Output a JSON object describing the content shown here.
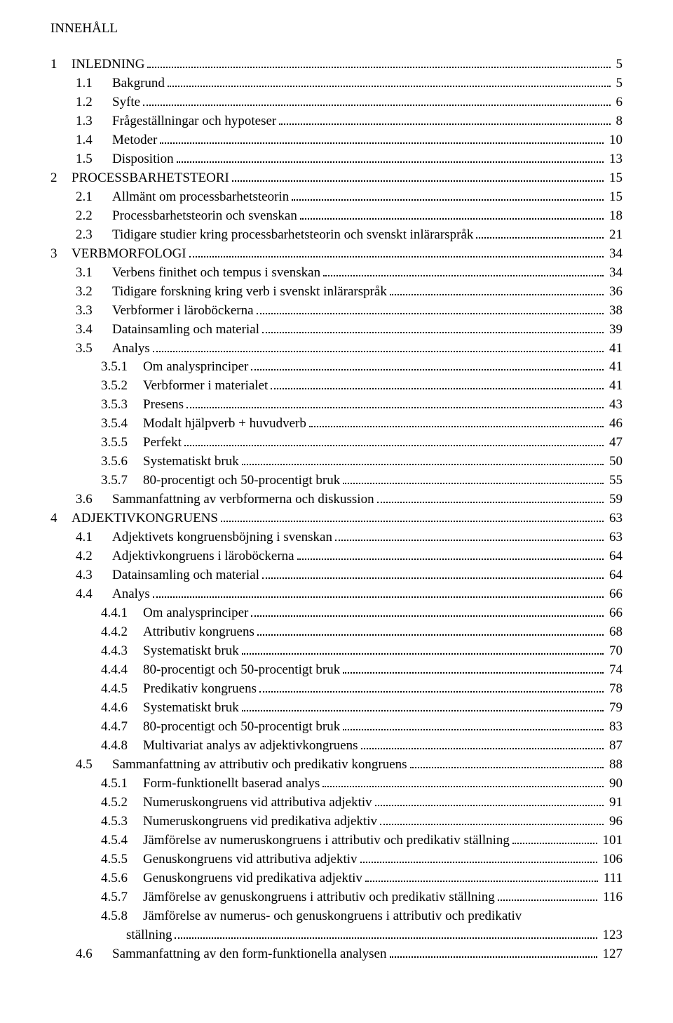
{
  "title": "INNEHÅLL",
  "entries": [
    {
      "num": "1",
      "text": "INLEDNING",
      "page": "5",
      "indent": 0
    },
    {
      "num": "1.1",
      "text": "Bakgrund",
      "page": "5",
      "indent": 1
    },
    {
      "num": "1.2",
      "text": "Syfte",
      "page": "6",
      "indent": 1
    },
    {
      "num": "1.3",
      "text": "Frågeställningar och hypoteser",
      "page": "8",
      "indent": 1
    },
    {
      "num": "1.4",
      "text": "Metoder",
      "page": "10",
      "indent": 1
    },
    {
      "num": "1.5",
      "text": "Disposition",
      "page": "13",
      "indent": 1
    },
    {
      "num": "2",
      "text": "PROCESSBARHETSTEORI",
      "page": "15",
      "indent": 0
    },
    {
      "num": "2.1",
      "text": "Allmänt om processbarhetsteorin",
      "page": "15",
      "indent": 1
    },
    {
      "num": "2.2",
      "text": "Processbarhetsteorin och svenskan",
      "page": "18",
      "indent": 1
    },
    {
      "num": "2.3",
      "text": "Tidigare studier kring processbarhetsteorin och svenskt inlärarspråk",
      "page": "21",
      "indent": 1
    },
    {
      "num": "3",
      "text": "VERBMORFOLOGI",
      "page": "34",
      "indent": 0
    },
    {
      "num": "3.1",
      "text": "Verbens finithet och tempus i svenskan",
      "page": "34",
      "indent": 1
    },
    {
      "num": "3.2",
      "text": "Tidigare forskning kring verb i svenskt inlärarspråk",
      "page": "36",
      "indent": 1
    },
    {
      "num": "3.3",
      "text": "Verbformer i läroböckerna",
      "page": "38",
      "indent": 1
    },
    {
      "num": "3.4",
      "text": "Datainsamling och material",
      "page": "39",
      "indent": 1
    },
    {
      "num": "3.5",
      "text": "Analys",
      "page": "41",
      "indent": 1
    },
    {
      "num": "3.5.1",
      "text": "Om analysprinciper",
      "page": "41",
      "indent": 2
    },
    {
      "num": "3.5.2",
      "text": "Verbformer i materialet",
      "page": "41",
      "indent": 2
    },
    {
      "num": "3.5.3",
      "text": "Presens",
      "page": "43",
      "indent": 2
    },
    {
      "num": "3.5.4",
      "text": "Modalt hjälpverb + huvudverb",
      "page": "46",
      "indent": 2
    },
    {
      "num": "3.5.5",
      "text": "Perfekt",
      "page": "47",
      "indent": 2
    },
    {
      "num": "3.5.6",
      "text": "Systematiskt bruk",
      "page": "50",
      "indent": 2
    },
    {
      "num": "3.5.7",
      "text": "80-procentigt och 50-procentigt bruk",
      "page": "55",
      "indent": 2
    },
    {
      "num": "3.6",
      "text": "Sammanfattning av verbformerna och diskussion",
      "page": "59",
      "indent": 1
    },
    {
      "num": "4",
      "text": "ADJEKTIVKONGRUENS",
      "page": "63",
      "indent": 0
    },
    {
      "num": "4.1",
      "text": "Adjektivets kongruensböjning i svenskan",
      "page": "63",
      "indent": 1
    },
    {
      "num": "4.2",
      "text": "Adjektivkongruens i läroböckerna",
      "page": "64",
      "indent": 1
    },
    {
      "num": "4.3",
      "text": "Datainsamling och material",
      "page": "64",
      "indent": 1
    },
    {
      "num": "4.4",
      "text": "Analys",
      "page": "66",
      "indent": 1
    },
    {
      "num": "4.4.1",
      "text": "Om analysprinciper",
      "page": "66",
      "indent": 2
    },
    {
      "num": "4.4.2",
      "text": "Attributiv kongruens",
      "page": "68",
      "indent": 2
    },
    {
      "num": "4.4.3",
      "text": "Systematiskt bruk",
      "page": "70",
      "indent": 2
    },
    {
      "num": "4.4.4",
      "text": "80-procentigt och 50-procentigt bruk",
      "page": "74",
      "indent": 2
    },
    {
      "num": "4.4.5",
      "text": "Predikativ kongruens",
      "page": "78",
      "indent": 2
    },
    {
      "num": "4.4.6",
      "text": "Systematiskt bruk",
      "page": "79",
      "indent": 2
    },
    {
      "num": "4.4.7",
      "text": "80-procentigt och 50-procentigt bruk",
      "page": "83",
      "indent": 2
    },
    {
      "num": "4.4.8",
      "text": "Multivariat analys av adjektivkongruens",
      "page": "87",
      "indent": 2
    },
    {
      "num": "4.5",
      "text": "Sammanfattning av attributiv och predikativ kongruens",
      "page": "88",
      "indent": 1
    },
    {
      "num": "4.5.1",
      "text": "Form-funktionellt baserad analys",
      "page": "90",
      "indent": 2
    },
    {
      "num": "4.5.2",
      "text": "Numeruskongruens vid attributiva adjektiv",
      "page": "91",
      "indent": 2
    },
    {
      "num": "4.5.3",
      "text": "Numeruskongruens vid predikativa adjektiv",
      "page": "96",
      "indent": 2
    },
    {
      "num": "4.5.4",
      "text": "Jämförelse av numeruskongruens i attributiv och predikativ ställning",
      "page": "101",
      "indent": 2
    },
    {
      "num": "4.5.5",
      "text": "Genuskongruens vid attributiva adjektiv",
      "page": "106",
      "indent": 2
    },
    {
      "num": "4.5.6",
      "text": "Genuskongruens vid predikativa adjektiv",
      "page": "111",
      "indent": 2
    },
    {
      "num": "4.5.7",
      "text": "Jämförelse av genuskongruens i attributiv och predikativ ställning",
      "page": "116",
      "indent": 2
    },
    {
      "num": "4.5.8",
      "text": "Jämförelse av numerus- och genuskongruens i attributiv och predikativ",
      "page": "",
      "indent": 2,
      "nodots": true
    },
    {
      "num": "",
      "text": "ställning",
      "page": "123",
      "indent": "2b"
    },
    {
      "num": "4.6",
      "text": "Sammanfattning av den form-funktionella analysen",
      "page": "127",
      "indent": 1
    }
  ],
  "num_width": {
    "0": "30px",
    "1": "52px",
    "2": "60px",
    "2b": "0px"
  }
}
